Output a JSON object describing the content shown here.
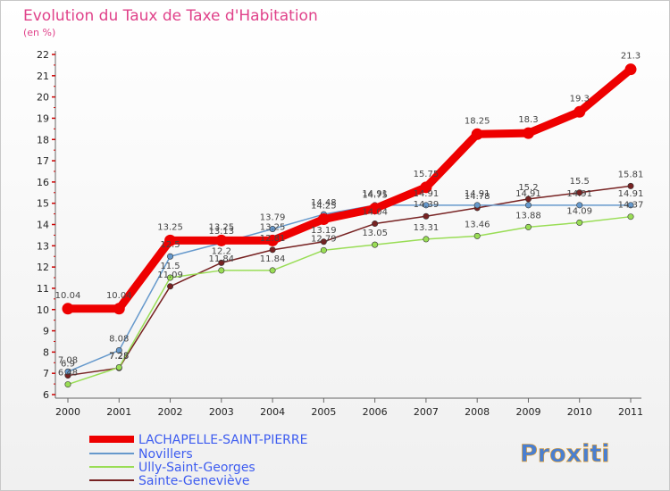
{
  "chart_data": {
    "type": "line",
    "title": "Evolution du Taux de Taxe d'Habitation",
    "subtitle": "(en %)",
    "xlabel": "",
    "ylabel": "",
    "x": [
      "2000",
      "2001",
      "2002",
      "2003",
      "2004",
      "2005",
      "2006",
      "2007",
      "2008",
      "2009",
      "2010",
      "2011"
    ],
    "ylim": [
      6,
      22
    ],
    "yticks": [
      6,
      7,
      8,
      9,
      10,
      11,
      12,
      13,
      14,
      15,
      16,
      17,
      18,
      19,
      20,
      21,
      22
    ],
    "series": [
      {
        "name": "LACHAPELLE-SAINT-PIERRE",
        "color": "#ee0000",
        "values": [
          10.04,
          10.04,
          13.25,
          13.25,
          13.25,
          14.25,
          14.75,
          15.75,
          18.25,
          18.3,
          19.3,
          21.3
        ],
        "labels": [
          "10.04",
          "10.04",
          "13.25",
          "13.25",
          "13.25",
          "14.25",
          "14.75",
          "15.75",
          "18.25",
          "18.3",
          "19.3",
          "21.3"
        ]
      },
      {
        "name": "Novillers",
        "color": "#6699cc",
        "values": [
          7.08,
          8.08,
          12.5,
          13.13,
          13.79,
          14.48,
          14.91,
          14.91,
          14.91,
          14.91,
          14.91,
          14.91
        ],
        "labels": [
          "7.08",
          "8.08",
          "12.5",
          "13.13",
          "13.79",
          "14.48",
          "14.91",
          "14.91",
          "14.91",
          "14.91",
          "14.91",
          "14.91"
        ]
      },
      {
        "name": "Ully-Saint-Georges",
        "color": "#99dd55",
        "values": [
          6.48,
          7.28,
          11.5,
          11.84,
          11.84,
          12.79,
          13.05,
          13.31,
          13.46,
          13.88,
          14.09,
          14.37
        ],
        "labels": [
          "6.48",
          "7.28",
          "11.5",
          "11.84",
          "11.84",
          "12.79",
          "13.05",
          "13.31",
          "13.46",
          "13.88",
          "14.09",
          "14.37"
        ]
      },
      {
        "name": "Sainte-Geneviève",
        "color": "#772222",
        "values": [
          6.9,
          7.25,
          11.09,
          12.2,
          12.81,
          13.19,
          14.04,
          14.39,
          14.78,
          15.2,
          15.5,
          15.81
        ],
        "labels": [
          "6.9",
          "7.25",
          "11.09",
          "12.2",
          "12.81",
          "13.19",
          "14.04",
          "14.39",
          "14.78",
          "15.2",
          "15.5",
          "15.81"
        ]
      }
    ]
  },
  "logo": {
    "text": "Proxiti"
  }
}
